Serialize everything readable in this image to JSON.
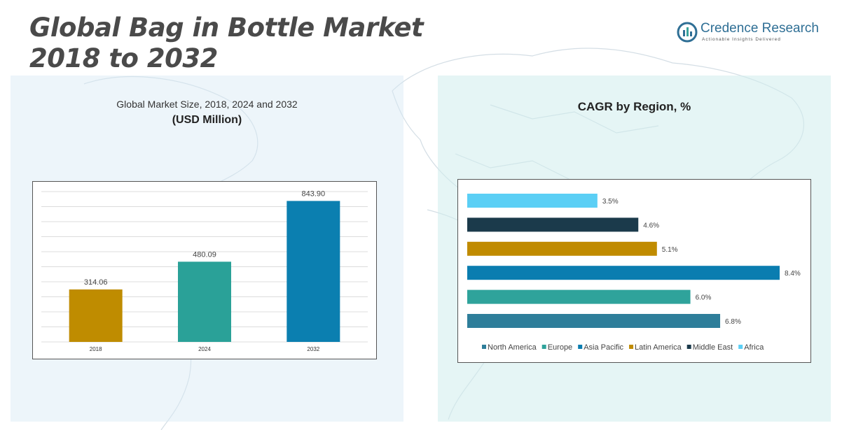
{
  "header": {
    "title_line1": "Global Bag in Bottle Market",
    "title_line2": "2018 to 2032"
  },
  "logo": {
    "name": "Credence Research",
    "tagline": "Actionable Insights Delivered",
    "color": "#2f6f95"
  },
  "left_panel": {
    "subtitle": "Global Market Size, 2018, 2024 and 2032",
    "unit": "(USD Million)"
  },
  "right_panel": {
    "title": "CAGR by Region, %"
  },
  "chart_data": [
    {
      "type": "bar",
      "title": "Global Market Size, 2018, 2024 and 2032",
      "subtitle": "(USD Million)",
      "categories": [
        "2018",
        "2024",
        "2032"
      ],
      "values": [
        314.06,
        480.09,
        843.9
      ],
      "value_labels": [
        "314.06",
        "480.09",
        "843.90"
      ],
      "colors": [
        "#bf8c00",
        "#2aa198",
        "#0b7fb0"
      ],
      "ylim": [
        0,
        900
      ],
      "grid": true,
      "gridline_count": 10,
      "legend": "none"
    },
    {
      "type": "bar",
      "orientation": "horizontal",
      "title": "CAGR by Region, %",
      "series": [
        {
          "name": "Africa",
          "value": 3.5,
          "label": "3.5%",
          "color": "#5bcff5"
        },
        {
          "name": "Middle East",
          "value": 4.6,
          "label": "4.6%",
          "color": "#1b3a4b"
        },
        {
          "name": "Latin America",
          "value": 5.1,
          "label": "5.1%",
          "color": "#c08b00"
        },
        {
          "name": "Asia Pacific",
          "value": 8.4,
          "label": "8.4%",
          "color": "#0a7db0"
        },
        {
          "name": "Europe",
          "value": 6.0,
          "label": "6.0%",
          "color": "#2fa39b"
        },
        {
          "name": "North America",
          "value": 6.8,
          "label": "6.8%",
          "color": "#2e7e9a"
        }
      ],
      "legend_order": [
        "North America",
        "Europe",
        "Asia Pacific",
        "Latin America",
        "Middle East",
        "Africa"
      ],
      "xlim": [
        0,
        8.4
      ],
      "legend": "bottom"
    }
  ]
}
